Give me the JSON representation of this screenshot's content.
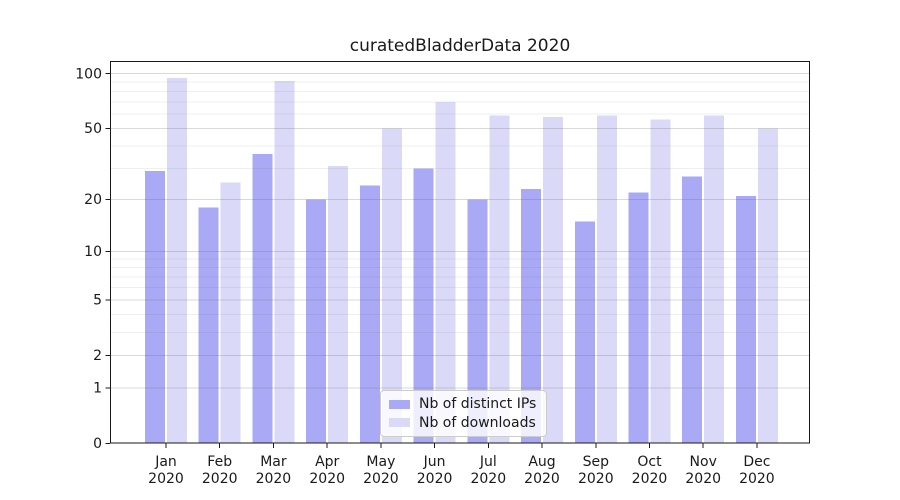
{
  "title": "curatedBladderData 2020",
  "colors": {
    "ips": "#a9a9f5",
    "downloads": "#dadaf8",
    "axis": "#1a1a1a",
    "text": "#1a1a1a",
    "grid_major": "rgba(102,102,102,0.25)",
    "grid_minor": "rgba(102,102,102,0.10)"
  },
  "legend": {
    "items": [
      {
        "label": "Nb of distinct IPs",
        "series": "ips"
      },
      {
        "label": "Nb of downloads",
        "series": "downloads"
      }
    ]
  },
  "chart_data": {
    "type": "bar",
    "title": "curatedBladderData 2020",
    "categories": [
      "Jan",
      "Feb",
      "Mar",
      "Apr",
      "May",
      "Jun",
      "Jul",
      "Aug",
      "Sep",
      "Oct",
      "Nov",
      "Dec"
    ],
    "year_label": "2020",
    "series": [
      {
        "name": "Nb of distinct IPs",
        "key": "ips",
        "values": [
          29,
          18,
          36,
          20,
          24,
          30,
          20,
          23,
          15,
          22,
          27,
          21
        ]
      },
      {
        "name": "Nb of downloads",
        "key": "downloads",
        "values": [
          95,
          25,
          91,
          31,
          50,
          70,
          59,
          58,
          59,
          56,
          59,
          50
        ]
      }
    ],
    "xlabel": "",
    "ylabel": "",
    "yscale": "log(1+y)",
    "yticks": [
      0,
      1,
      2,
      5,
      10,
      20,
      50,
      100
    ],
    "ytick_labels": [
      "0",
      "1",
      "2",
      "5",
      "10",
      "20",
      "50",
      "100"
    ],
    "yticks_minor": [
      3,
      4,
      6,
      7,
      8,
      9,
      30,
      40,
      60,
      70,
      80,
      90
    ],
    "ylim": [
      0,
      117
    ],
    "grid": true,
    "legend_position": "lower center"
  }
}
